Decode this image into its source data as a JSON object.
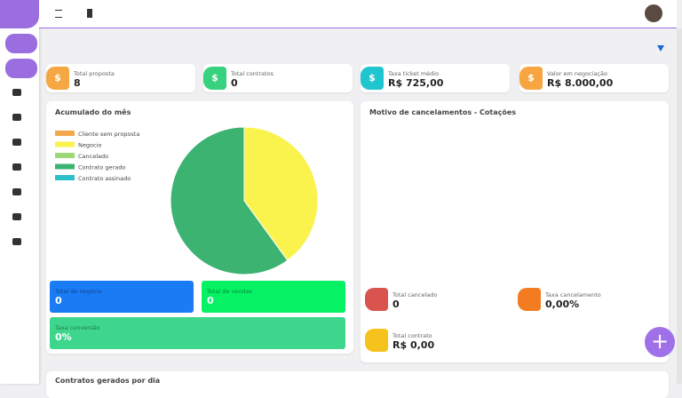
{
  "cards": [
    {
      "label": "Total proposta",
      "value": "8",
      "color": "#f4a742"
    },
    {
      "label": "Total contratos",
      "value": "0",
      "color": "#36d27f"
    },
    {
      "label": "Taxa ticket médio",
      "value": "R$ 725,00",
      "color": "#1fc6d0"
    },
    {
      "label": "Valor em negociação",
      "value": "R$ 8.000,00",
      "color": "#f6a540"
    }
  ],
  "chart_data": {
    "type": "pie",
    "title": "Acumulado do mês",
    "categories": [
      "Cliente sem proposta",
      "Negocio",
      "Cancelado",
      "Contrato gerado",
      "Contrato assinado"
    ],
    "values": [
      0,
      40,
      0,
      60,
      0
    ],
    "colors": [
      "#f4a84e",
      "#fbf34d",
      "#9fd87a",
      "#3cb371",
      "#2bbfc9"
    ],
    "legend": "top-left"
  },
  "summary": [
    {
      "label": "Total de negócio",
      "value": "0",
      "color": "#1a7cf5"
    },
    {
      "label": "Total de vendas",
      "value": "0",
      "color": "#06f264"
    },
    {
      "label": "Taxa conversão",
      "value": "0%",
      "color": "#3dd68c"
    }
  ],
  "cancel_panel": {
    "title": "Motivo de cancelamentos - Cotações",
    "stats": [
      {
        "label": "Total cancelado",
        "value": "0",
        "color": "#d9534f"
      },
      {
        "label": "Taxa cancelamento",
        "value": "0,00%",
        "color": "#f47c20"
      },
      {
        "label": "Total contrato",
        "value": "R$ 0,00",
        "color": "#f6c21c"
      }
    ]
  },
  "bottom_panel": {
    "title": "Contratos gerados por dia"
  }
}
